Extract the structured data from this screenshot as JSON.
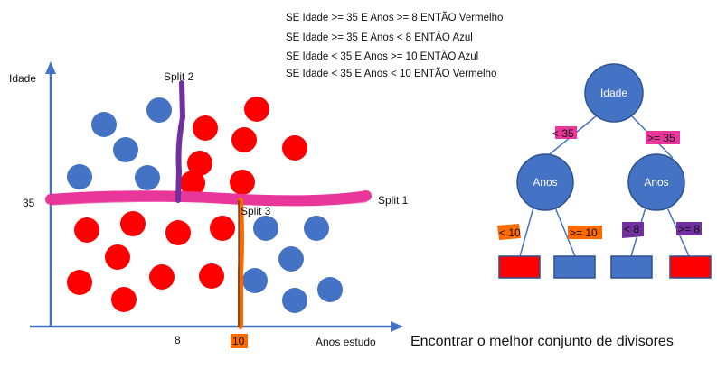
{
  "rules": [
    "SE Idade >= 35 E Anos >= 8 ENTÃO Vermelho",
    "SE Idade >= 35 E Anos < 8 ENTÃO Azul",
    "SE Idade < 35 E Anos >= 10 ENTÃO Azul",
    "SE Idade < 35 E Anos < 10 ENTÃO Vermelho"
  ],
  "scatter": {
    "y_axis_label": "Idade",
    "x_axis_label": "Anos estudo",
    "y_tick": "35",
    "x_tick_8": "8",
    "x_tick_10": "10",
    "split1_label": "Split 1",
    "split2_label": "Split 2",
    "split3_label": "Split 3",
    "colors": {
      "red": "#ff0000",
      "blue": "#4472c4",
      "pink": "#e8369a",
      "purple": "#7030a0",
      "orange": "#ff6a00",
      "axis": "#4472c4"
    }
  },
  "tree": {
    "root": "Idade",
    "left_node": "Anos",
    "right_node": "Anos",
    "edge_lt35": "< 35",
    "edge_ge35": ">= 35",
    "edge_lt10": "< 10",
    "edge_ge10": ">= 10",
    "edge_lt8": "< 8",
    "edge_ge8": ">= 8",
    "leaf_colors": [
      "#ff0000",
      "#4472c4",
      "#4472c4",
      "#ff0000"
    ]
  },
  "caption": "Encontrar o melhor conjunto de divisores"
}
